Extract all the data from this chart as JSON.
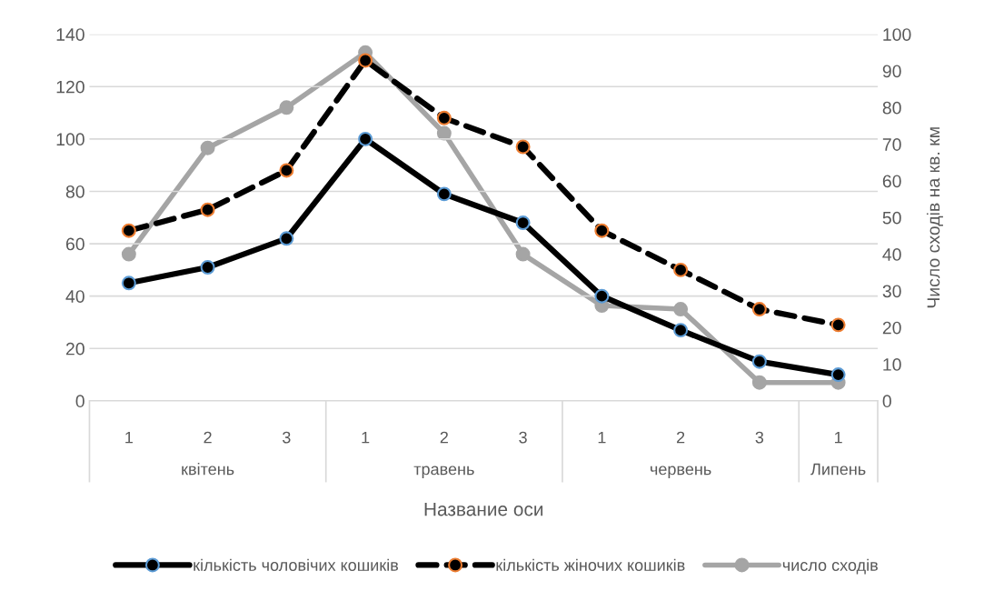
{
  "chart_data": {
    "type": "line",
    "categories": [
      "1",
      "2",
      "3",
      "1",
      "2",
      "3",
      "1",
      "2",
      "3",
      "1"
    ],
    "annotations": [
      "квітень",
      "травень",
      "червень",
      "Липень"
    ],
    "xlabel": "Название оси",
    "y2label": "Число сходів на кв. км",
    "series": [
      {
        "name": "кількість чоловічих кошиків",
        "color": "#000000",
        "line_style": "solid",
        "values": [
          45,
          51,
          62,
          100,
          79,
          68,
          40,
          27,
          15,
          10
        ]
      },
      {
        "name": "кількість жіночих кошиків",
        "color": "#000000",
        "line_style": "dashed",
        "values": [
          65,
          73,
          88,
          130,
          108,
          97,
          65,
          50,
          35,
          29
        ]
      },
      {
        "name": "число сходів",
        "color": "#a5a5a5",
        "axis": "y2",
        "values": [
          40,
          69,
          80,
          95,
          73,
          40,
          26,
          25,
          5,
          5
        ]
      }
    ],
    "marker": "circle",
    "ylim": [
      0,
      140
    ],
    "yticks": [
      0,
      20,
      40,
      60,
      80,
      100,
      120,
      140
    ],
    "y2lim": [
      0,
      100
    ],
    "y2ticks": [
      0,
      10,
      20,
      30,
      40,
      50,
      60,
      70,
      80,
      90,
      100
    ],
    "grid": "y",
    "legend": "bottom"
  }
}
